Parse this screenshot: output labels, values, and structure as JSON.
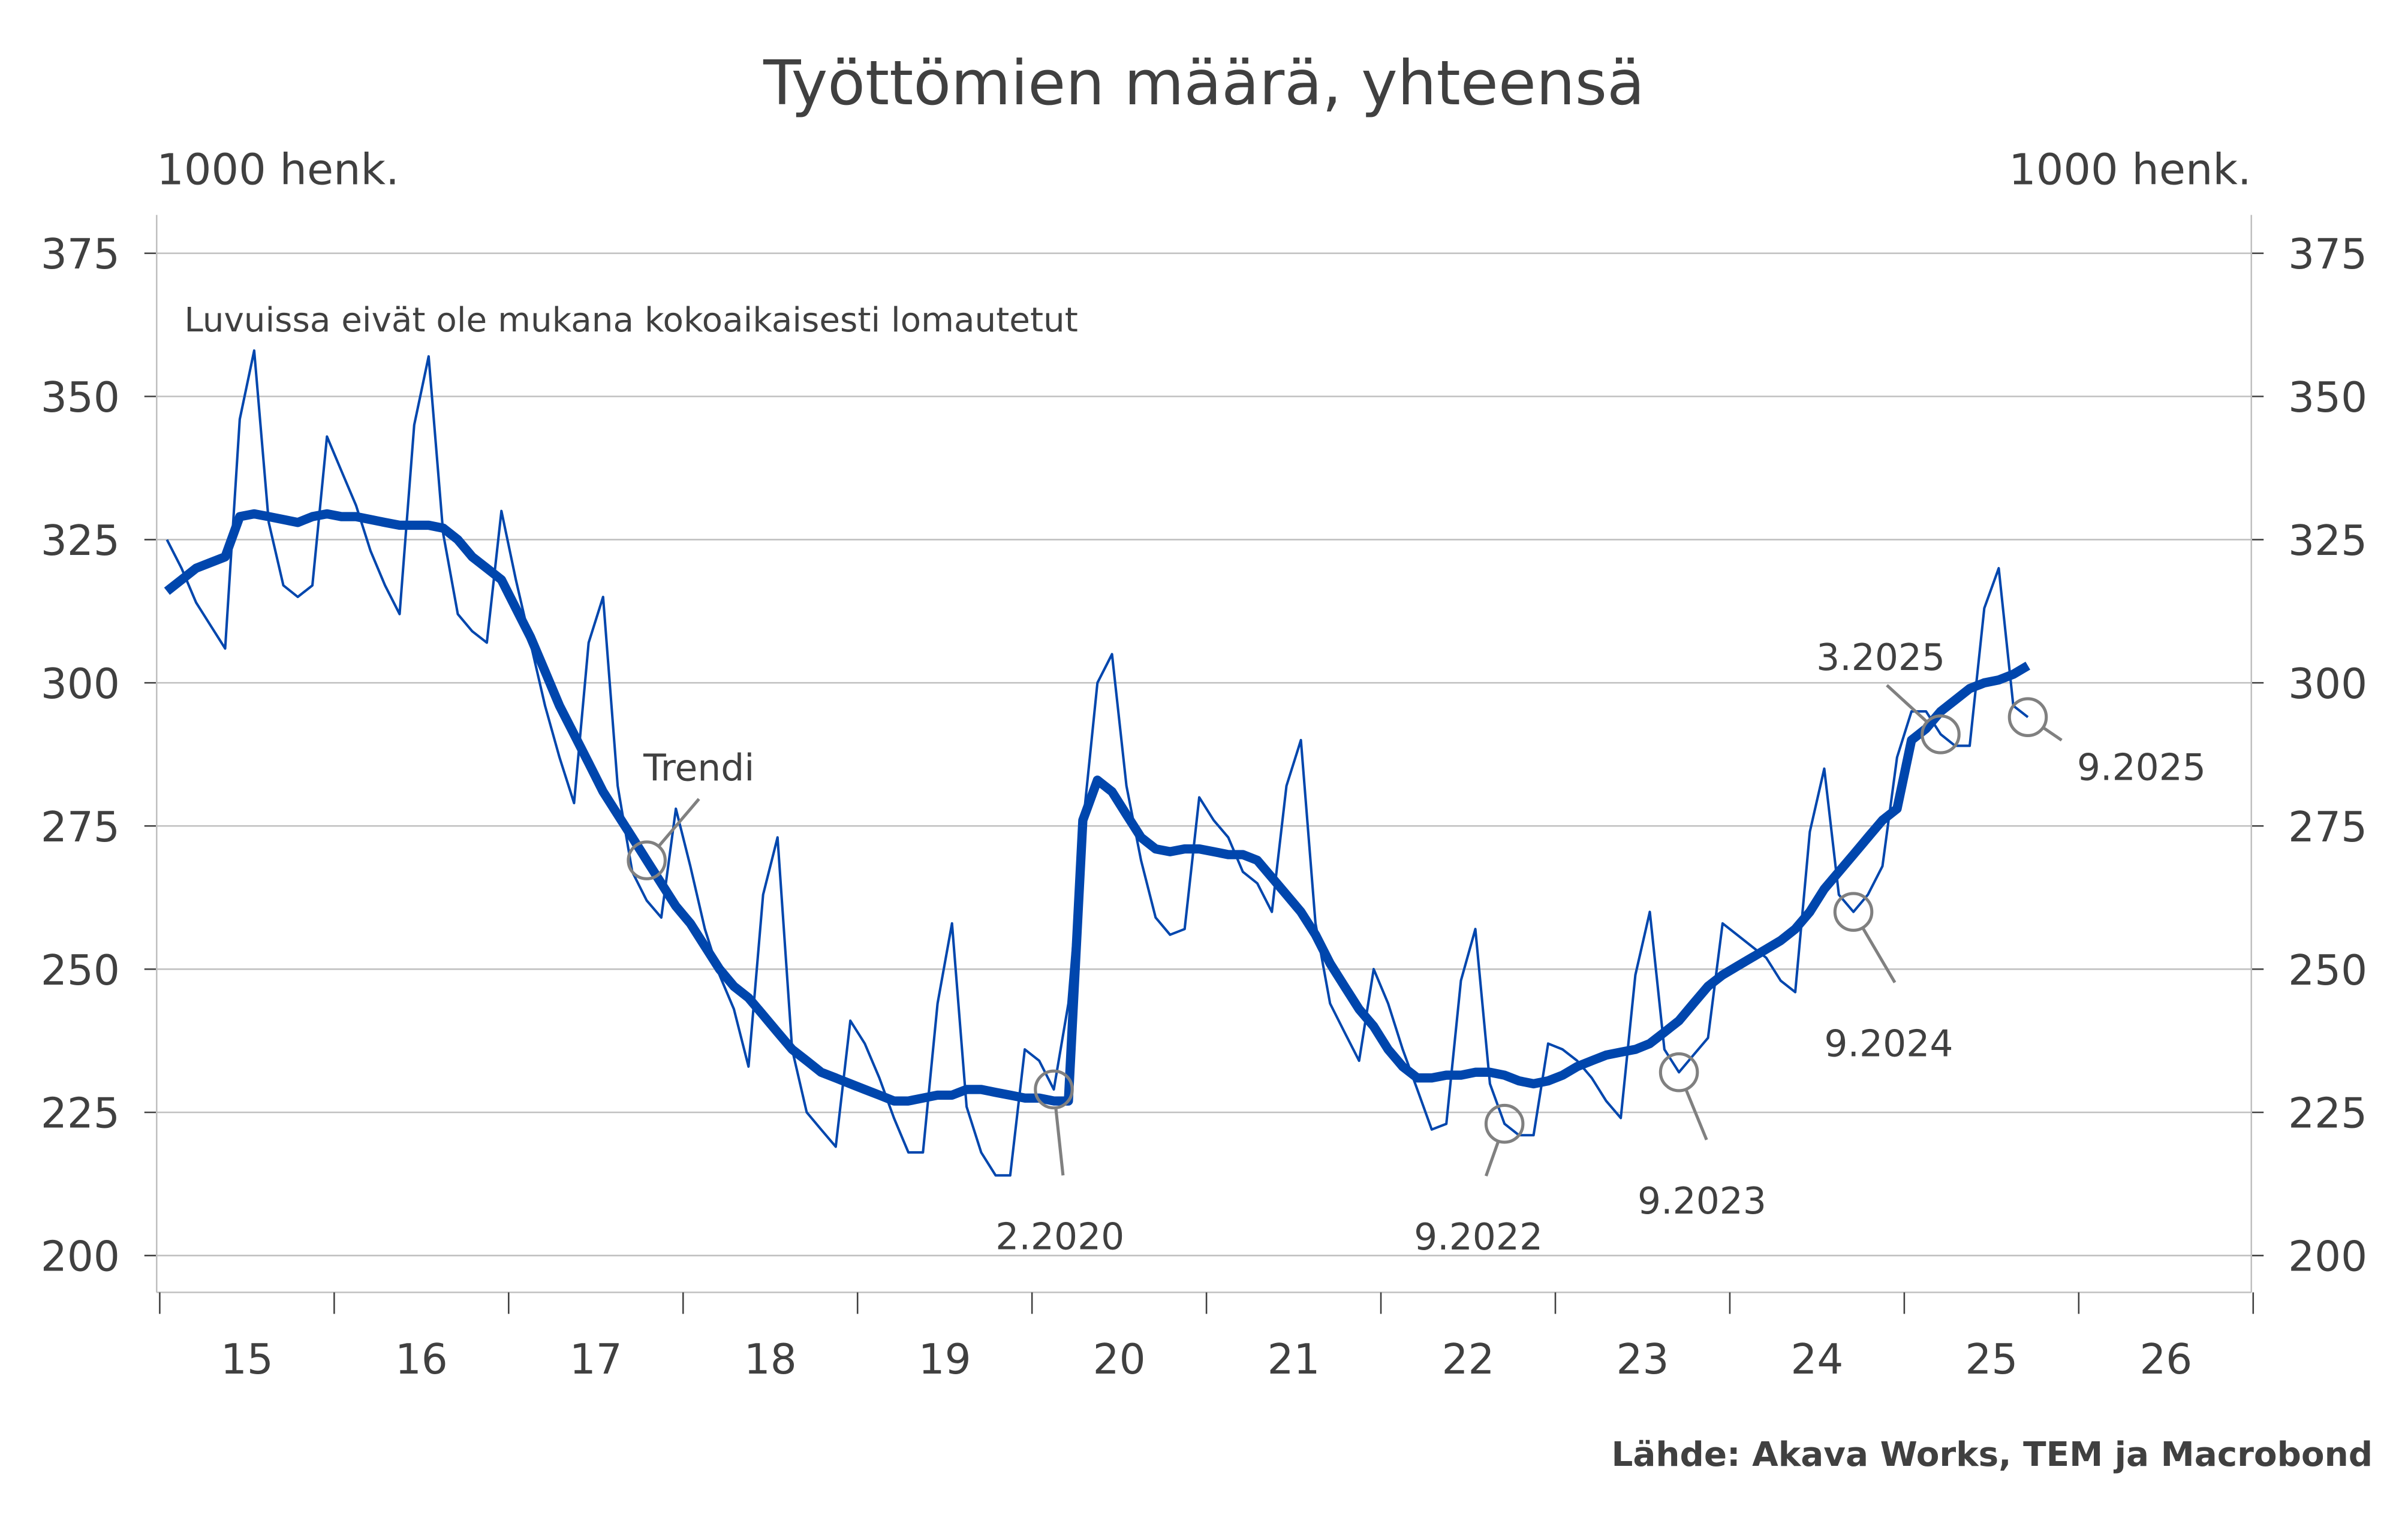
{
  "chart_data": {
    "type": "line",
    "title": "Työttömien määrä, yhteensä",
    "ylabel_left": "1000 henk.",
    "ylabel_right": "1000 henk.",
    "note": "Luvuissa eivät ole mukana kokoaikaisesti lomautetut",
    "source": "Lähde: Akava Works, TEM ja Macrobond",
    "ylim": [
      200,
      375
    ],
    "yticks": [
      200,
      225,
      250,
      275,
      300,
      325,
      350,
      375
    ],
    "xlim": [
      "2015-01",
      "2026-12"
    ],
    "xtick_labels": [
      "15",
      "16",
      "17",
      "18",
      "19",
      "20",
      "21",
      "22",
      "23",
      "24",
      "25",
      "26"
    ],
    "grid": true,
    "start": "2015-01",
    "frequency": "monthly",
    "series": [
      {
        "name": "",
        "color": "#0046AD",
        "values": [
          325,
          320,
          314,
          310,
          306,
          346,
          358,
          328,
          317,
          315,
          317,
          343,
          337,
          331,
          323,
          317,
          312,
          345,
          357,
          326,
          312,
          309,
          307,
          330,
          318,
          307,
          296,
          287,
          279,
          307,
          315,
          282,
          267,
          262,
          259,
          278,
          268,
          257,
          249,
          243,
          233,
          263,
          273,
          236,
          225,
          222,
          219,
          241,
          237,
          231,
          224,
          218,
          218,
          244,
          258,
          226,
          218,
          214,
          214,
          236,
          234,
          229,
          244,
          275,
          300,
          305,
          282,
          269,
          259,
          256,
          257,
          280,
          276,
          273,
          267,
          265,
          260,
          282,
          290,
          258,
          244,
          239,
          234,
          250,
          244,
          236,
          229,
          222,
          223,
          248,
          257,
          230,
          223,
          221,
          221,
          237,
          236,
          234,
          231,
          227,
          224,
          249,
          260,
          236,
          232,
          235,
          238,
          258,
          256,
          254,
          252,
          248,
          246,
          274,
          285,
          263,
          260,
          263,
          268,
          287,
          295,
          295,
          291,
          289,
          289,
          313,
          320,
          296,
          294
        ]
      },
      {
        "name": "Trendi",
        "color": "#0046AD",
        "values": [
          316,
          318,
          320,
          321,
          322,
          329,
          329.5,
          329,
          328.5,
          328,
          329,
          329.5,
          329,
          329,
          328.5,
          328,
          327.5,
          327.5,
          327.5,
          327,
          325,
          322,
          320,
          318,
          313,
          308,
          302,
          296,
          291,
          286,
          281,
          277,
          273,
          269,
          265,
          261,
          258,
          254,
          250,
          247,
          245,
          242,
          239,
          236,
          234,
          232,
          231,
          230,
          229,
          228,
          227,
          227,
          227.5,
          228,
          228,
          229,
          229,
          228.5,
          228,
          227.5,
          227.5,
          227,
          227,
          276,
          283,
          281,
          277,
          273,
          271,
          270.5,
          271,
          271,
          270.5,
          270,
          270,
          269,
          266,
          263,
          260,
          256,
          251,
          247,
          243,
          240,
          236,
          233,
          231,
          231,
          231.5,
          231.5,
          232,
          232,
          231.5,
          230.5,
          230,
          230.5,
          231.5,
          233,
          234,
          235,
          235.5,
          236,
          237,
          239,
          241,
          244,
          247,
          249,
          250.5,
          252,
          253.5,
          255,
          257,
          260,
          264,
          267,
          270,
          273,
          276,
          278,
          290,
          292,
          295,
          297,
          299,
          300,
          300.5,
          301.5,
          303
        ]
      }
    ],
    "annotations": [
      {
        "label": "Trendi",
        "date": "2017-10",
        "series": "Trendi"
      },
      {
        "label": "2.2020",
        "date": "2020-02",
        "series": "raw"
      },
      {
        "label": "9.2022",
        "date": "2022-09",
        "series": "raw"
      },
      {
        "label": "9.2023",
        "date": "2023-09",
        "series": "raw"
      },
      {
        "label": "9.2024",
        "date": "2024-09",
        "series": "raw"
      },
      {
        "label": "3.2025",
        "date": "2025-03",
        "series": "raw"
      },
      {
        "label": "9.2025",
        "date": "2025-09",
        "series": "raw"
      }
    ],
    "colors": {
      "line": "#0046AD",
      "grid": "#C0C0C0",
      "annotation": "#808080",
      "text": "#404040"
    }
  }
}
